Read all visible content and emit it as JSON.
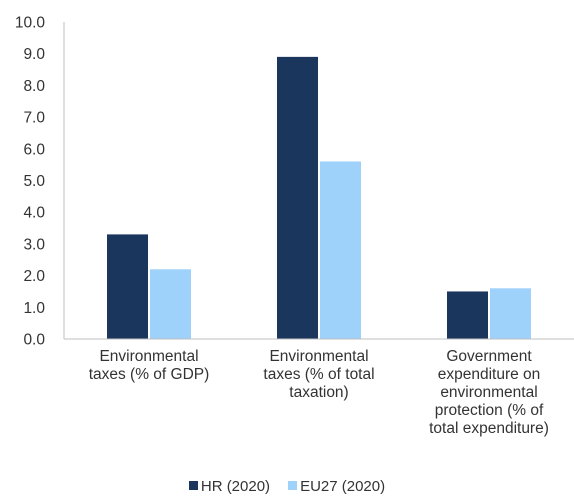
{
  "chart_data": {
    "type": "bar",
    "categories": [
      "Environmental taxes (% of GDP)",
      "Environmental taxes (% of total taxation)",
      "Government expenditure on environmental protection (% of total expenditure)"
    ],
    "series": [
      {
        "name": "HR (2020)",
        "color": "#1b365d",
        "values": [
          3.3,
          8.9,
          1.5
        ]
      },
      {
        "name": "EU27 (2020)",
        "color": "#9fd2fb",
        "values": [
          2.2,
          5.6,
          1.6
        ]
      }
    ],
    "ylim": [
      0,
      10
    ],
    "yticks": [
      "0.0",
      "1.0",
      "2.0",
      "3.0",
      "4.0",
      "5.0",
      "6.0",
      "7.0",
      "8.0",
      "9.0",
      "10.0"
    ],
    "grid": false,
    "legend_position": "bottom"
  }
}
